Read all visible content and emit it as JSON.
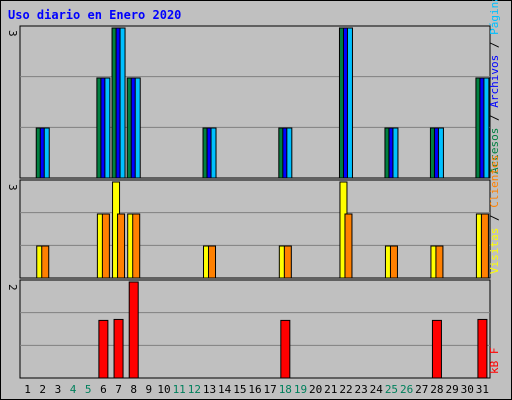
{
  "chart_data": {
    "type": "bar",
    "title": "Uso diario en Enero 2020",
    "x": [
      "1",
      "2",
      "3",
      "4",
      "5",
      "6",
      "7",
      "8",
      "9",
      "10",
      "11",
      "12",
      "13",
      "14",
      "15",
      "16",
      "17",
      "18",
      "19",
      "20",
      "21",
      "22",
      "23",
      "24",
      "25",
      "26",
      "27",
      "28",
      "29",
      "30",
      "31"
    ],
    "weekend_days": [
      "4",
      "5",
      "11",
      "12",
      "18",
      "19",
      "25",
      "26"
    ],
    "panels": [
      {
        "max_label": "3",
        "ylim": [
          0,
          3
        ],
        "legend": [
          "Accesos",
          "/",
          "Archivos",
          "/",
          "Páginas"
        ],
        "legend_colors": [
          "#008040",
          "#000000",
          "#0000ff",
          "#000000",
          "#00c0ff"
        ],
        "series": [
          {
            "name": "Accesos",
            "color": "#008040",
            "values": [
              0,
              1,
              0,
              0,
              0,
              2,
              3,
              2,
              0,
              0,
              0,
              0,
              1,
              0,
              0,
              0,
              0,
              1,
              0,
              0,
              0,
              3,
              0,
              0,
              1,
              0,
              0,
              1,
              0,
              0,
              2
            ]
          },
          {
            "name": "Archivos",
            "color": "#0000ff",
            "values": [
              0,
              1,
              0,
              0,
              0,
              2,
              3,
              2,
              0,
              0,
              0,
              0,
              1,
              0,
              0,
              0,
              0,
              1,
              0,
              0,
              0,
              3,
              0,
              0,
              1,
              0,
              0,
              1,
              0,
              0,
              2
            ]
          },
          {
            "name": "Páginas",
            "color": "#00c0ff",
            "values": [
              0,
              1,
              0,
              0,
              0,
              2,
              3,
              2,
              0,
              0,
              0,
              0,
              1,
              0,
              0,
              0,
              0,
              1,
              0,
              0,
              0,
              3,
              0,
              0,
              1,
              0,
              0,
              1,
              0,
              0,
              2
            ]
          }
        ]
      },
      {
        "max_label": "3",
        "ylim": [
          0,
          3
        ],
        "legend": [
          "Visitas",
          "/",
          "Clientes"
        ],
        "legend_colors": [
          "#ffff00",
          "#000000",
          "#ff8000"
        ],
        "series": [
          {
            "name": "Visitas",
            "color": "#ffff00",
            "values": [
              0,
              1,
              0,
              0,
              0,
              2,
              3,
              2,
              0,
              0,
              0,
              0,
              1,
              0,
              0,
              0,
              0,
              1,
              0,
              0,
              0,
              3,
              0,
              0,
              1,
              0,
              0,
              1,
              0,
              0,
              2
            ]
          },
          {
            "name": "Clientes",
            "color": "#ff8000",
            "values": [
              0,
              1,
              0,
              0,
              0,
              2,
              2,
              2,
              0,
              0,
              0,
              0,
              1,
              0,
              0,
              0,
              0,
              1,
              0,
              0,
              0,
              2,
              0,
              0,
              1,
              0,
              0,
              1,
              0,
              0,
              2
            ]
          }
        ]
      },
      {
        "max_label": "2",
        "ylim": [
          0,
          2
        ],
        "legend": [
          "kB F"
        ],
        "legend_colors": [
          "#ff0000"
        ],
        "series": [
          {
            "name": "kB F",
            "color": "#ff0000",
            "values": [
              0,
              0,
              0,
              0,
              0,
              1.2,
              1.22,
              2,
              0,
              0,
              0,
              0,
              0,
              0,
              0,
              0,
              0,
              1.2,
              0,
              0,
              0,
              0,
              0,
              0,
              0,
              0,
              0,
              1.2,
              0,
              0,
              1.22
            ]
          }
        ]
      }
    ],
    "colors": {
      "title": "#0000ff",
      "background": "#c0c0c0",
      "weekday_label": "#000000",
      "weekend_label": "#00805c",
      "grid": "#808080"
    }
  }
}
